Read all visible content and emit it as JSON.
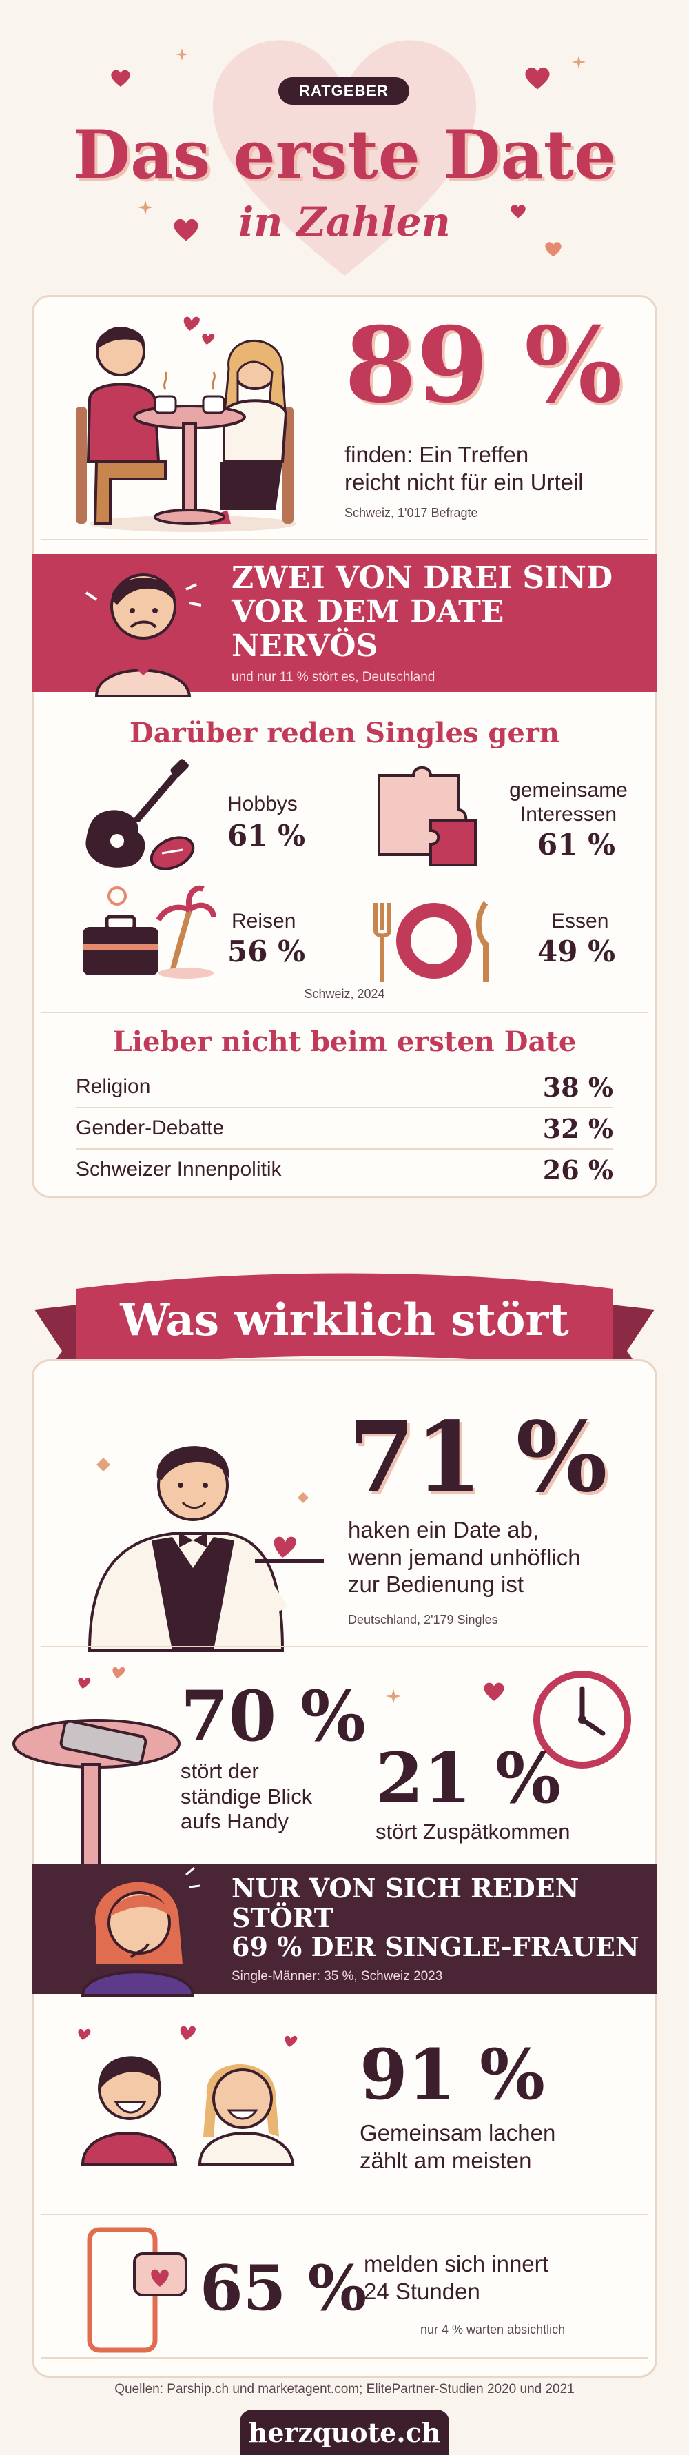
{
  "header": {
    "badge": "RATGEBER",
    "title": "Das erste Date",
    "subtitle": "in Zahlen"
  },
  "stat_89": {
    "value": "89 %",
    "text_1": "finden: Ein Treffen",
    "text_2": "reicht nicht für ein Urteil",
    "source": "Schweiz, 1'017 Befragte"
  },
  "nervous": {
    "line_1": "ZWEI VON DREI SIND",
    "line_2": "VOR DEM DATE NERVÖS",
    "note": "und nur 11 % stört es, Deutschland"
  },
  "topics": {
    "title": "Darüber reden Singles gern",
    "items": [
      {
        "label": "Hobbys",
        "value": "61 %"
      },
      {
        "label_1": "gemeinsame",
        "label_2": "Interessen",
        "value": "61 %"
      },
      {
        "label": "Reisen",
        "value": "56 %"
      },
      {
        "label": "Essen",
        "value": "49 %"
      }
    ],
    "source": "Schweiz, 2024"
  },
  "avoid": {
    "title": "Lieber nicht beim ersten Date",
    "rows": [
      {
        "label": "Religion",
        "value": "38 %"
      },
      {
        "label": "Gender-Debatte",
        "value": "32 %"
      },
      {
        "label": "Schweizer Innenpolitik",
        "value": "26 %"
      }
    ]
  },
  "banner": {
    "title": "Was wirklich stört"
  },
  "stat_71": {
    "value": "71 %",
    "text_1": "haken ein Date ab,",
    "text_2": "wenn jemand unhöflich",
    "text_3": "zur Bedienung ist",
    "source": "Deutschland, 2'179 Singles"
  },
  "stat_70": {
    "value": "70 %",
    "text_1": "stört der",
    "text_2": "ständige Blick",
    "text_3": "aufs Handy"
  },
  "stat_21": {
    "value": "21 %",
    "text_1": "stört Zuspätkommen"
  },
  "self_talk": {
    "line_1": "NUR VON SICH REDEN STÖRT",
    "line_2": "69 % DER SINGLE-FRAUEN",
    "note": "Single-Männer: 35 %, Schweiz 2023"
  },
  "stat_91": {
    "value": "91 %",
    "text_1": "Gemeinsam lachen",
    "text_2": "zählt am meisten"
  },
  "stat_65": {
    "value": "65 %",
    "text_1": "melden sich innert",
    "text_2": "24 Stunden",
    "note": "nur 4 % warten absichtlich"
  },
  "footer": {
    "sources": "Quellen: Parship.ch und marketagent.com; ElitePartner-Studien 2020 und 2021",
    "brand": "herzquote.ch"
  },
  "colors": {
    "rose": "#c23a5a",
    "plum": "#3d1e2c",
    "cream": "#faf4ee",
    "pink": "#f5d5d2"
  }
}
